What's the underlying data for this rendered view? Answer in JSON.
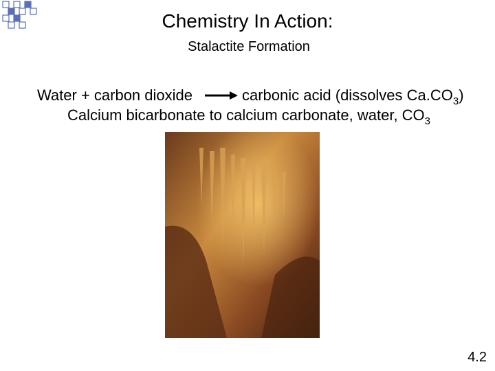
{
  "title": "Chemistry In Action:",
  "subtitle": "Stalactite Formation",
  "lines": [
    {
      "reactants": "Water + carbon dioxide",
      "product": "carbonic acid (dissolves Ca.CO",
      "subscript": "3",
      "closing": ")"
    },
    {
      "text": "Calcium bicarbonate to calcium carbonate, water, CO",
      "subscript": "3"
    }
  ],
  "slide_number": "4.2"
}
